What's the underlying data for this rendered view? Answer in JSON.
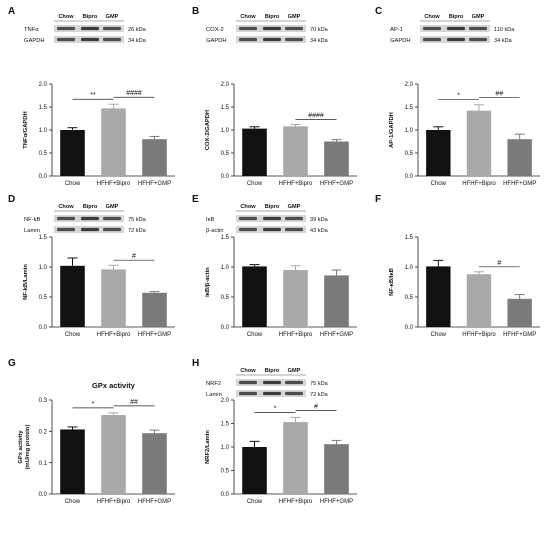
{
  "figure": {
    "colors": {
      "bar_chow": "#111111",
      "bar_bipro": "#a9a9a9",
      "bar_gmp": "#7a7a7a",
      "blot_band": "#2b2b2b",
      "axis": "#222222"
    },
    "blot_lanes": [
      "Chow",
      "Bipro",
      "GMP"
    ]
  },
  "chart_data": [
    {
      "panel": "A",
      "type": "bar",
      "categories": [
        "Chow",
        "HFHF+Bipro",
        "HFHF+GMP"
      ],
      "values": [
        1.0,
        1.47,
        0.8
      ],
      "errors": [
        0.05,
        0.09,
        0.06
      ],
      "ylabel": "TNFα/GAPDH",
      "ylim": [
        0,
        2.0
      ],
      "yticks": [
        "0.0",
        "0.5",
        "1.0",
        "1.5",
        "2.0"
      ],
      "significance": [
        {
          "from": 0,
          "to": 1,
          "label": "**"
        },
        {
          "from": 1,
          "to": 2,
          "label": "####"
        }
      ],
      "blot": [
        {
          "label": "TNFα",
          "kda": "26 kDa"
        },
        {
          "label": "GAPDH",
          "kda": "34 kDa"
        }
      ]
    },
    {
      "panel": "B",
      "type": "bar",
      "categories": [
        "Chow",
        "HFHF+Bipro",
        "HFHF+GMP"
      ],
      "values": [
        1.03,
        1.08,
        0.75
      ],
      "errors": [
        0.04,
        0.04,
        0.04
      ],
      "ylabel": "COX-2/GAPDH",
      "ylim": [
        0,
        2.0
      ],
      "yticks": [
        "0.0",
        "0.5",
        "1.0",
        "1.5",
        "2.0"
      ],
      "significance": [
        {
          "from": 1,
          "to": 2,
          "label": "####"
        }
      ],
      "blot": [
        {
          "label": "COX-2",
          "kda": "70 kDa"
        },
        {
          "label": "GAPDH",
          "kda": "34 kDa"
        }
      ]
    },
    {
      "panel": "C",
      "type": "bar",
      "categories": [
        "Chow",
        "HFHF+Bipro",
        "HFHF+GMP"
      ],
      "values": [
        1.0,
        1.42,
        0.8
      ],
      "errors": [
        0.07,
        0.13,
        0.11
      ],
      "ylabel": "AP-1/GAPDH",
      "ylim": [
        0,
        2.0
      ],
      "yticks": [
        "0.0",
        "0.5",
        "1.0",
        "1.5",
        "2.0"
      ],
      "significance": [
        {
          "from": 0,
          "to": 1,
          "label": "*"
        },
        {
          "from": 1,
          "to": 2,
          "label": "##"
        }
      ],
      "blot": [
        {
          "label": "AP-1",
          "kda": "110 kDa"
        },
        {
          "label": "GAPDH",
          "kda": "34 kDa"
        }
      ]
    },
    {
      "panel": "D",
      "type": "bar",
      "categories": [
        "Chow",
        "HFHF+Bipro",
        "HFHF+GMP"
      ],
      "values": [
        1.02,
        0.96,
        0.57
      ],
      "errors": [
        0.13,
        0.07,
        0.02
      ],
      "ylabel": "NF-kB/Lamin",
      "ylim": [
        0,
        1.5
      ],
      "yticks": [
        "0.0",
        "0.5",
        "1.0",
        "1.5"
      ],
      "significance": [
        {
          "from": 1,
          "to": 2,
          "label": "#"
        }
      ],
      "blot": [
        {
          "label": "NF-kB",
          "kda": "75 kDa"
        },
        {
          "label": "Lamin",
          "kda": "72 kDa"
        }
      ]
    },
    {
      "panel": "E",
      "type": "bar",
      "categories": [
        "Chow",
        "HFHF+Bipro",
        "HFHF+GMP"
      ],
      "values": [
        1.01,
        0.95,
        0.86
      ],
      "errors": [
        0.03,
        0.07,
        0.09
      ],
      "ylabel": "IκB/β-actin",
      "ylim": [
        0,
        1.5
      ],
      "yticks": [
        "0.0",
        "0.5",
        "1.0",
        "1.5"
      ],
      "significance": [],
      "blot": [
        {
          "label": "IκB",
          "kda": "39 kDa"
        },
        {
          "label": "β-actin",
          "kda": "43 kDa"
        }
      ]
    },
    {
      "panel": "F",
      "type": "bar",
      "categories": [
        "Chow",
        "HFHF+Bipro",
        "HFHF+GMP"
      ],
      "values": [
        1.01,
        0.88,
        0.47
      ],
      "errors": [
        0.1,
        0.04,
        0.07
      ],
      "ylabel": "NF-κB/IκB",
      "ylim": [
        0,
        1.5
      ],
      "yticks": [
        "0.0",
        "0.5",
        "1.0",
        "1.5"
      ],
      "significance": [
        {
          "from": 1,
          "to": 2,
          "label": "#"
        }
      ],
      "blot": []
    },
    {
      "panel": "G",
      "type": "bar",
      "title": "GPx activity",
      "categories": [
        "Chow",
        "HFHF+Bipro",
        "HFHF+GMP"
      ],
      "values": [
        0.206,
        0.252,
        0.194
      ],
      "errors": [
        0.008,
        0.007,
        0.01
      ],
      "ylabel": "GPx activity",
      "ylabel2": "(mU/mg protein)",
      "ylim": [
        0,
        0.3
      ],
      "yticks": [
        "0.0",
        "0.1",
        "0.2",
        "0.3"
      ],
      "significance": [
        {
          "from": 0,
          "to": 1,
          "label": "*"
        },
        {
          "from": 1,
          "to": 2,
          "label": "##"
        }
      ],
      "blot": []
    },
    {
      "panel": "H",
      "type": "bar",
      "categories": [
        "Chow",
        "HFHF+Bipro",
        "HFHF+GMP"
      ],
      "values": [
        1.0,
        1.53,
        1.06
      ],
      "errors": [
        0.12,
        0.1,
        0.08
      ],
      "ylabel": "NRF2/Lamin",
      "ylim": [
        0,
        2.0
      ],
      "yticks": [
        "0.0",
        "0.5",
        "1.0",
        "1.5",
        "2.0"
      ],
      "significance": [
        {
          "from": 0,
          "to": 1,
          "label": "*"
        },
        {
          "from": 1,
          "to": 2,
          "label": "#"
        }
      ],
      "blot": [
        {
          "label": "NRF2",
          "kda": "75 kDa"
        },
        {
          "label": "Lamin",
          "kda": "72 kDa"
        }
      ]
    }
  ]
}
